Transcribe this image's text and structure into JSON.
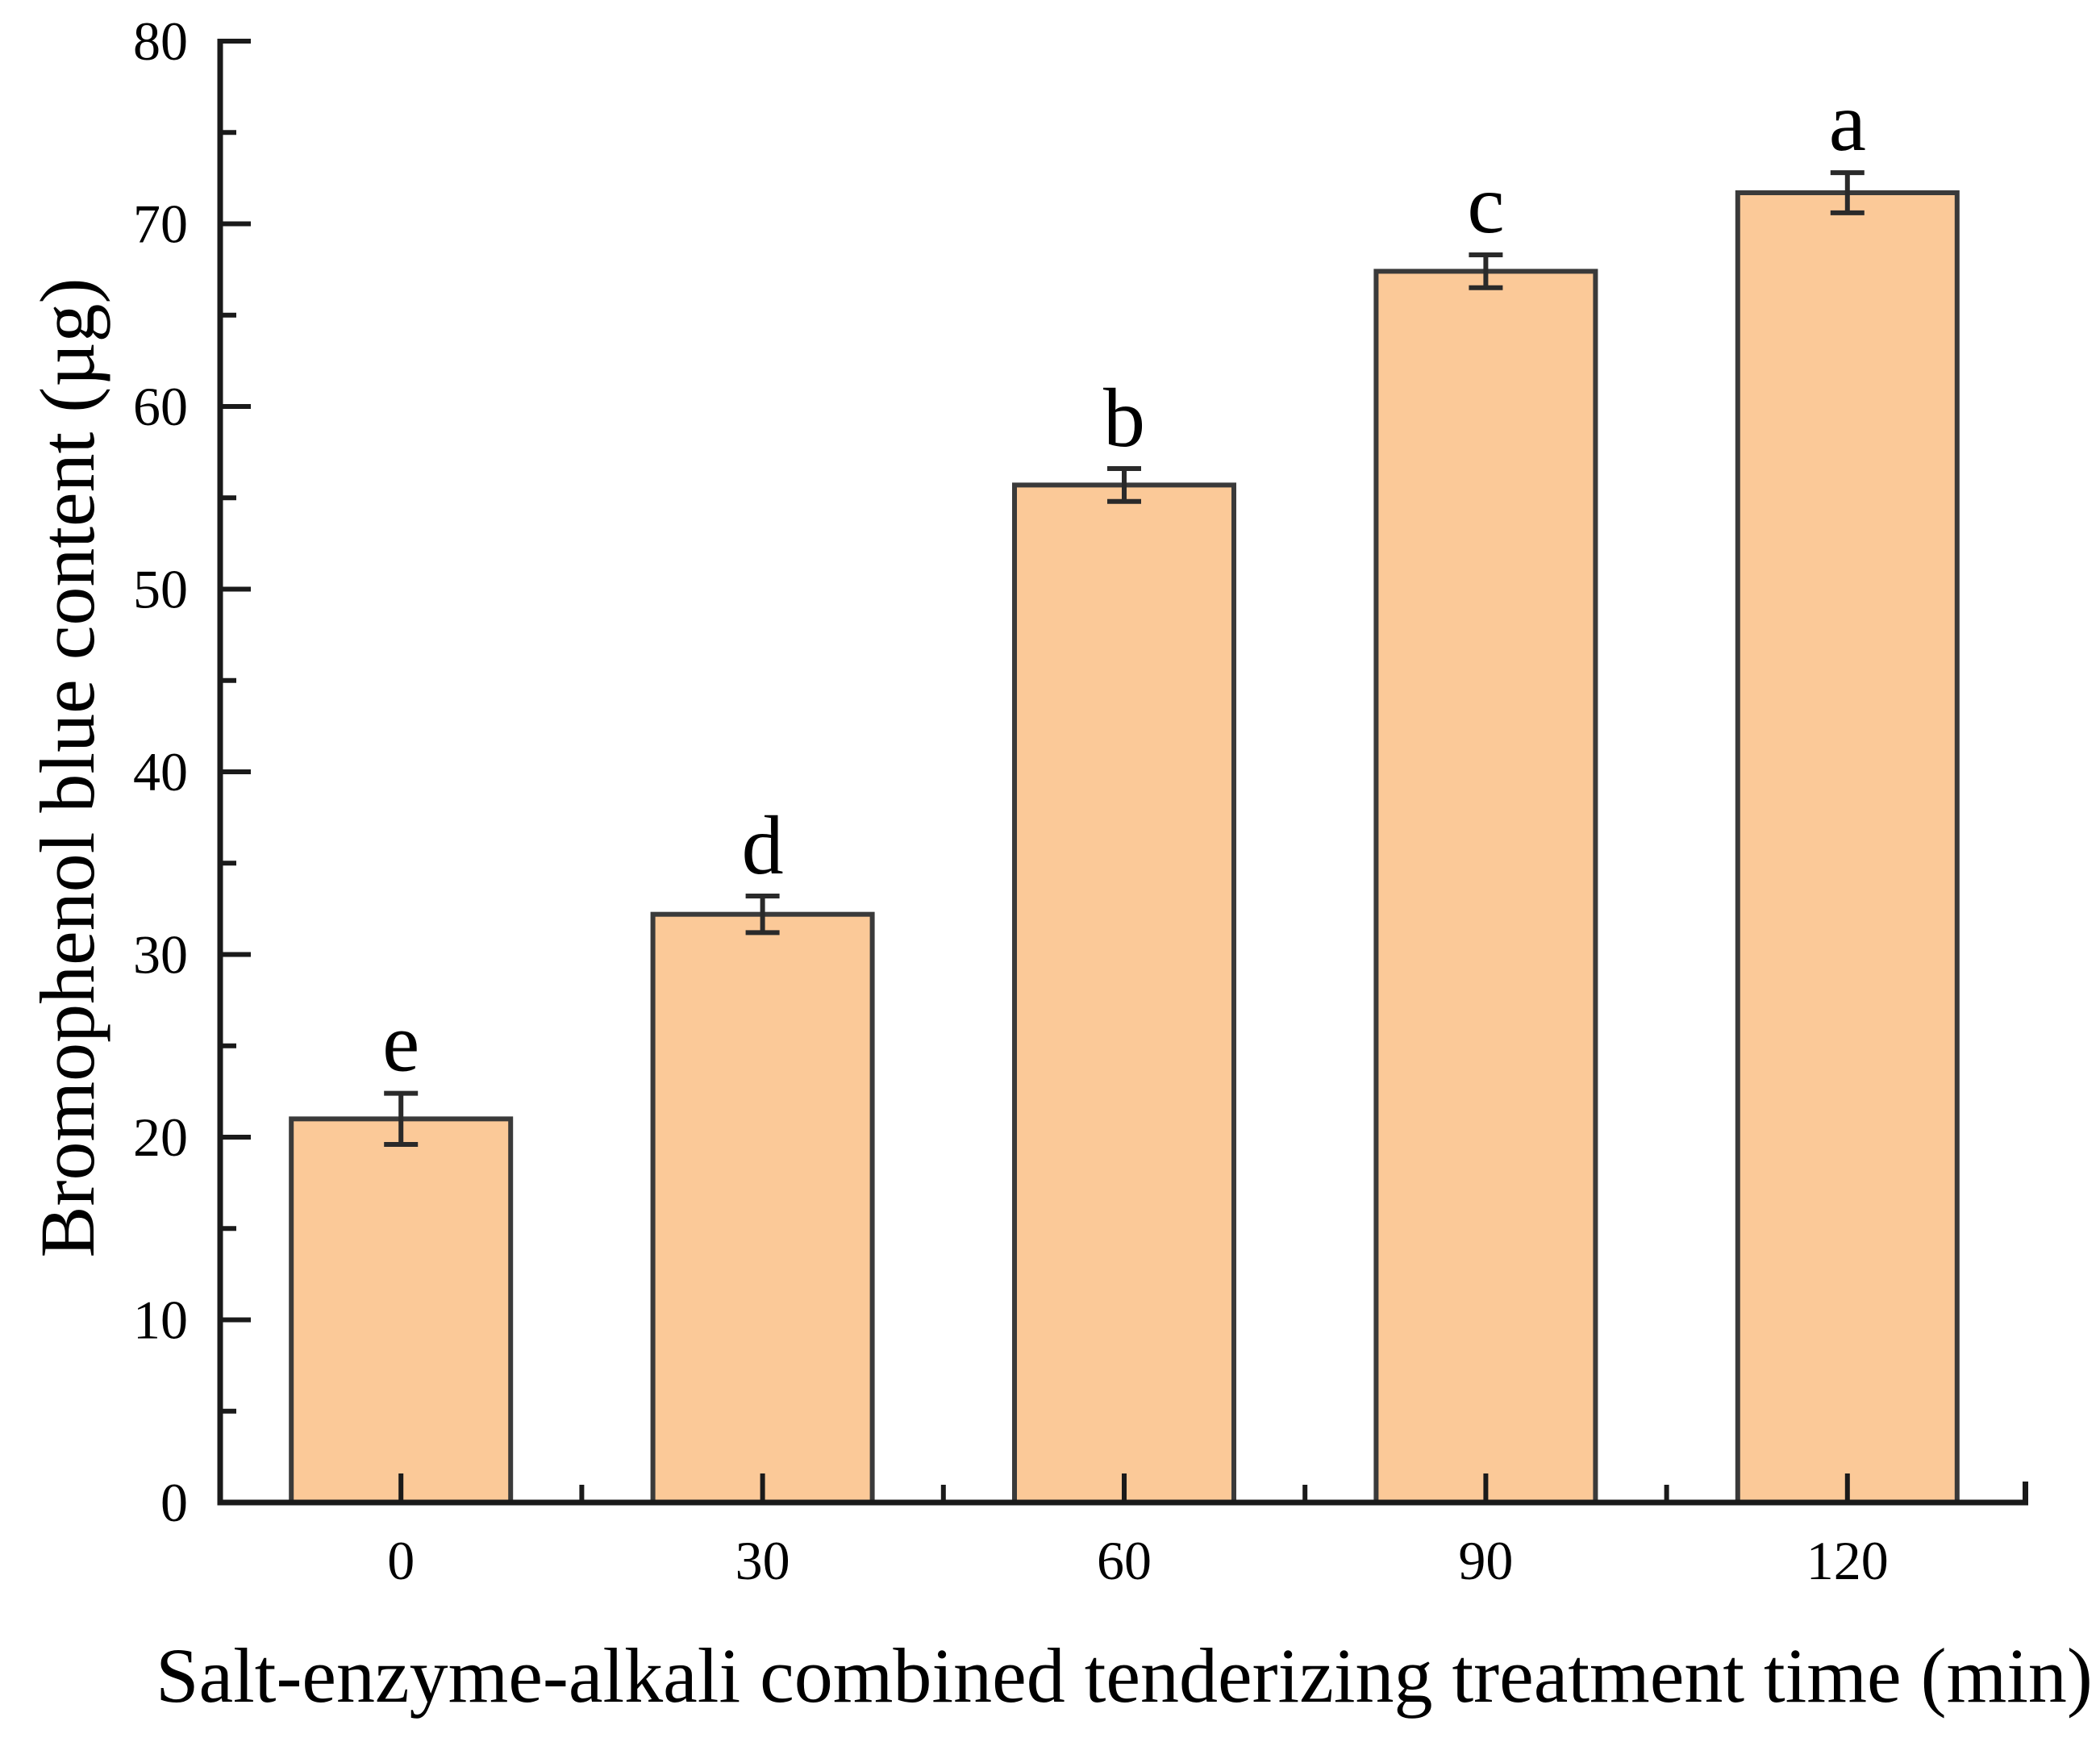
{
  "figure": {
    "background": "#FFFFFF"
  },
  "chart_data": {
    "type": "bar",
    "title": "",
    "xlabel": "Salt-enzyme-alkali combined tenderizing treatment time (min)",
    "ylabel": "Bromophenol blue content (µg)",
    "categories": [
      "0",
      "30",
      "60",
      "90",
      "120"
    ],
    "values": [
      21.0,
      32.2,
      55.7,
      67.4,
      71.7
    ],
    "error_bars": [
      1.4,
      1.0,
      0.9,
      0.9,
      1.1
    ],
    "sig_letters": [
      "e",
      "d",
      "b",
      "c",
      "a"
    ],
    "ylim": [
      0,
      80
    ],
    "y_major_step": 10,
    "y_minor_step": 5,
    "grid": false,
    "legend": "none",
    "colors": {
      "bar_fill": "#FBC998",
      "bar_stroke": "#3A3A3A",
      "error_bar": "#2A2A2A",
      "axis": "#1A1A1A",
      "text": "#000000"
    }
  }
}
